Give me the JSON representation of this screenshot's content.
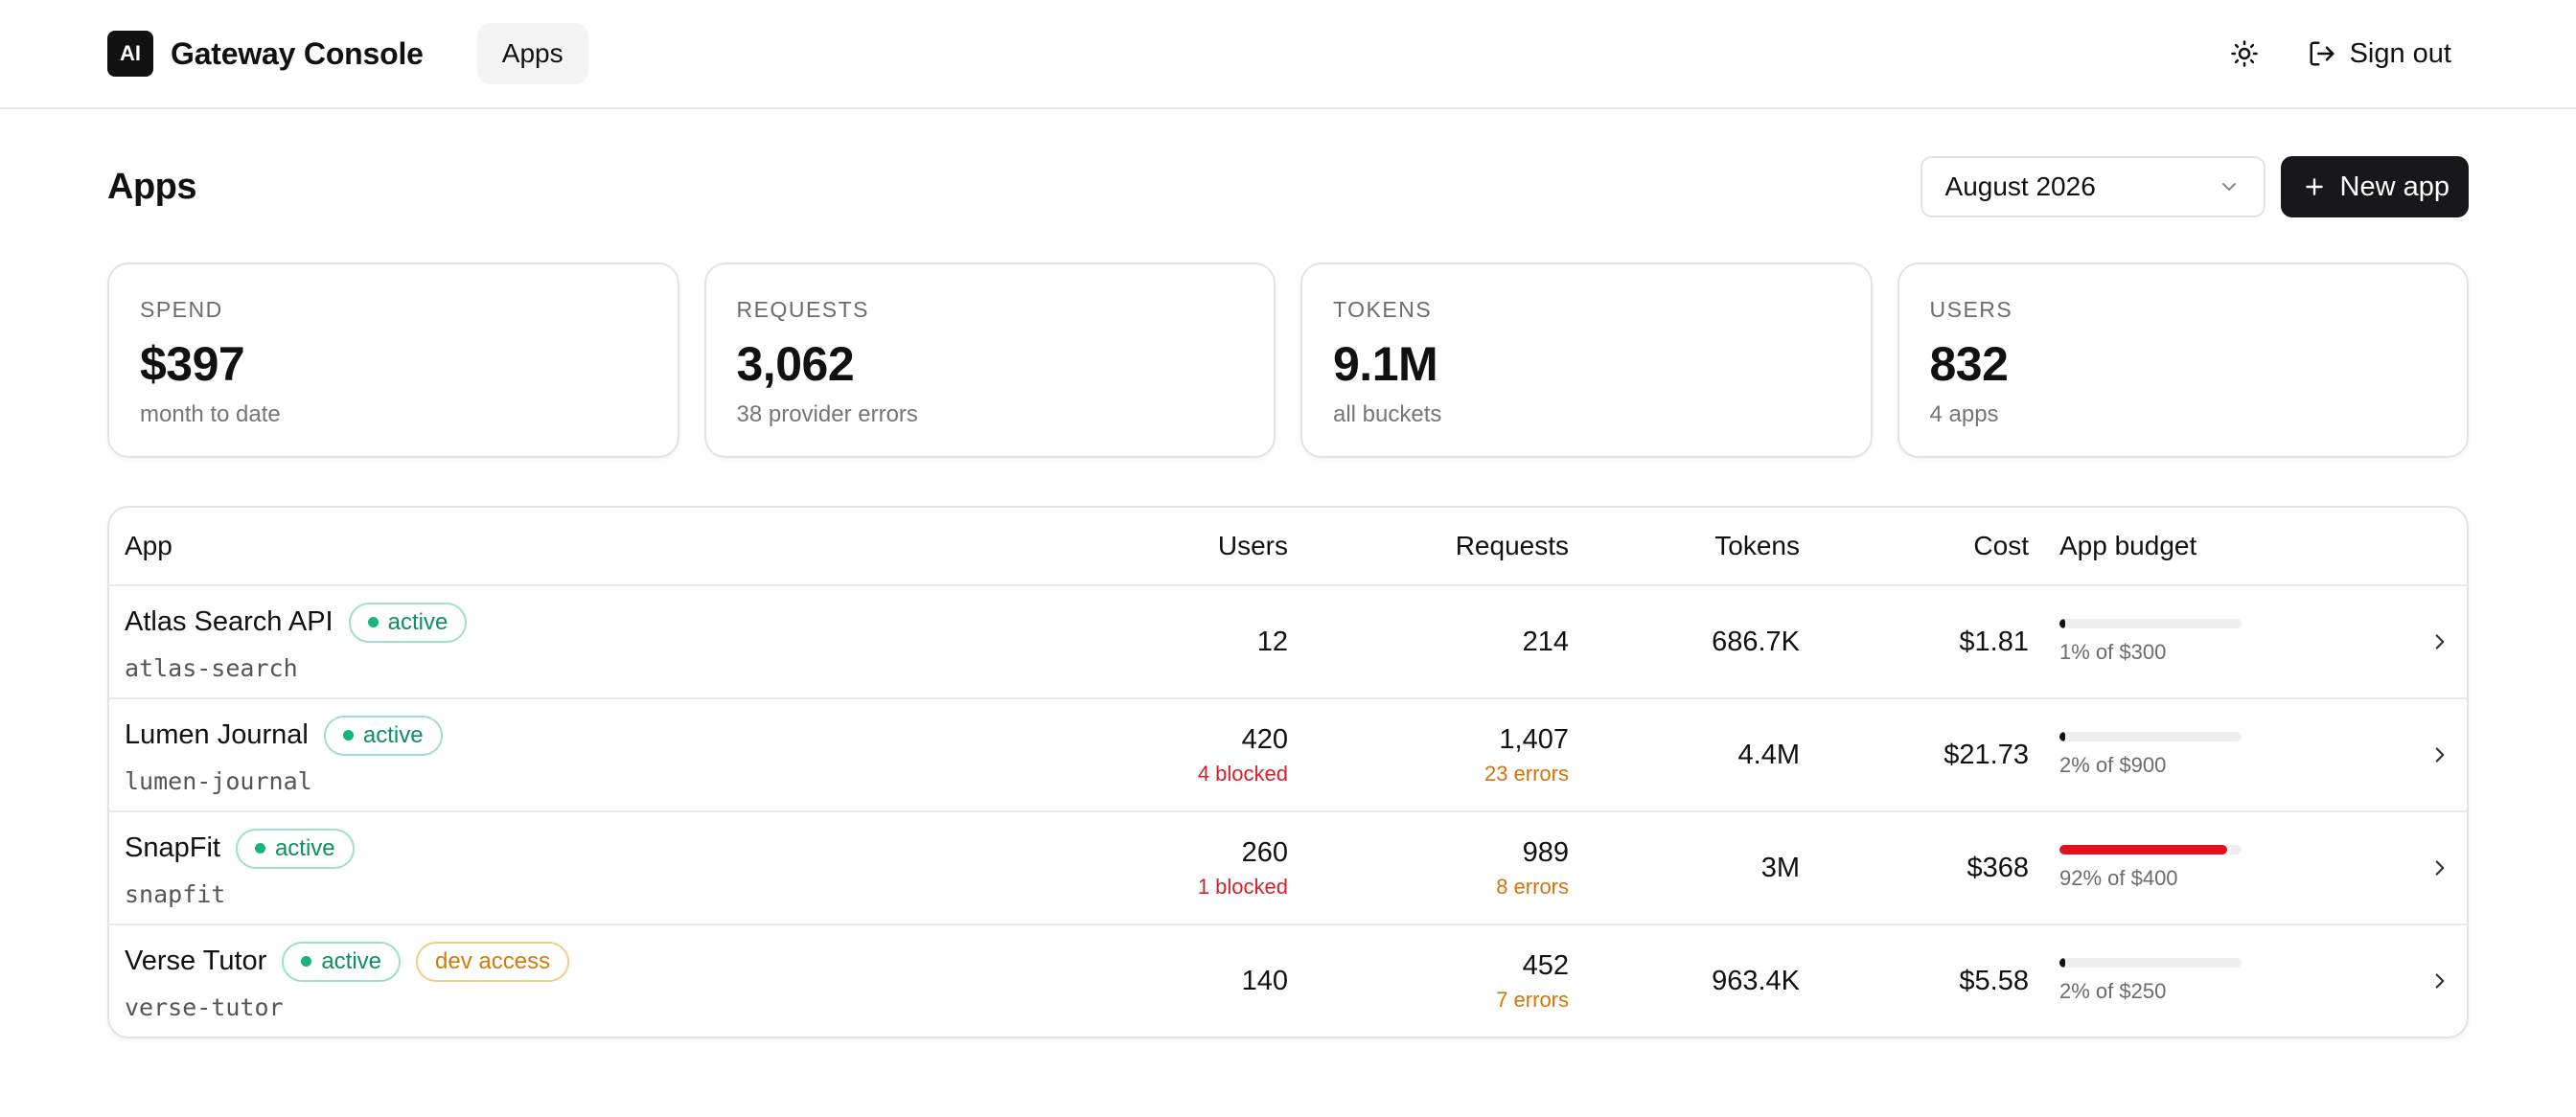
{
  "header": {
    "logo_text": "AI",
    "brand": "Gateway Console",
    "nav_apps": "Apps",
    "sign_out": "Sign out"
  },
  "page": {
    "title": "Apps",
    "month": "August 2026",
    "new_app": "New app"
  },
  "stats": [
    {
      "label": "SPEND",
      "value": "$397",
      "sub": "month to date"
    },
    {
      "label": "REQUESTS",
      "value": "3,062",
      "sub": "38 provider errors"
    },
    {
      "label": "TOKENS",
      "value": "9.1M",
      "sub": "all buckets"
    },
    {
      "label": "USERS",
      "value": "832",
      "sub": "4 apps"
    }
  ],
  "table": {
    "headers": {
      "app": "App",
      "users": "Users",
      "requests": "Requests",
      "tokens": "Tokens",
      "cost": "Cost",
      "budget": "App budget"
    },
    "rows": [
      {
        "name": "Atlas Search API",
        "status": "active",
        "dev": "",
        "slug": "atlas-search",
        "users": "12",
        "users_sub": "",
        "requests": "214",
        "requests_sub": "",
        "tokens": "686.7K",
        "cost": "$1.81",
        "budget_pct": 1,
        "budget_color": "#111111",
        "budget_text": "1% of $300"
      },
      {
        "name": "Lumen Journal",
        "status": "active",
        "dev": "",
        "slug": "lumen-journal",
        "users": "420",
        "users_sub": "4 blocked",
        "requests": "1,407",
        "requests_sub": "23 errors",
        "tokens": "4.4M",
        "cost": "$21.73",
        "budget_pct": 2,
        "budget_color": "#111111",
        "budget_text": "2% of $900"
      },
      {
        "name": "SnapFit",
        "status": "active",
        "dev": "",
        "slug": "snapfit",
        "users": "260",
        "users_sub": "1 blocked",
        "requests": "989",
        "requests_sub": "8 errors",
        "tokens": "3M",
        "cost": "$368",
        "budget_pct": 92,
        "budget_color": "#e0111e",
        "budget_text": "92% of $400"
      },
      {
        "name": "Verse Tutor",
        "status": "active",
        "dev": "dev access",
        "slug": "verse-tutor",
        "users": "140",
        "users_sub": "",
        "requests": "452",
        "requests_sub": "7 errors",
        "tokens": "963.4K",
        "cost": "$5.58",
        "budget_pct": 2,
        "budget_color": "#111111",
        "budget_text": "2% of $250"
      }
    ]
  }
}
